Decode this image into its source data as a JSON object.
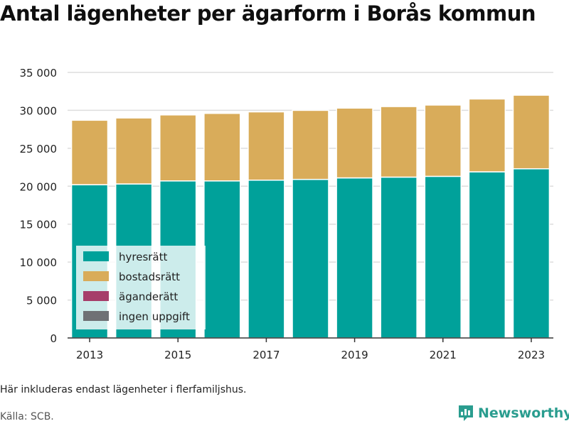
{
  "title": "Antal lägenheter per ägarform i Borås kommun",
  "note": "Här inkluderas endast lägenheter i flerfamiljshus.",
  "source": "Källa: SCB.",
  "brand": {
    "name": "Newsworthy",
    "color": "#2a9d8f"
  },
  "colors": {
    "hyresratt": "#00a19a",
    "bostadsratt": "#d9ac5a",
    "aganderatt": "#a63e6a",
    "ingen_uppgift": "#6f7175",
    "grid": "#dddddd",
    "axis": "#333333"
  },
  "chart_data": {
    "type": "bar",
    "stacked": true,
    "categories": [
      2013,
      2014,
      2015,
      2016,
      2017,
      2018,
      2019,
      2020,
      2021,
      2022,
      2023
    ],
    "x_tick_labels": [
      "2013",
      "2015",
      "2017",
      "2019",
      "2021",
      "2023"
    ],
    "y_tick_labels": [
      "0",
      "5 000",
      "10 000",
      "15 000",
      "20 000",
      "25 000",
      "30 000",
      "35 000"
    ],
    "ylim": [
      0,
      35000
    ],
    "grid": true,
    "legend_position": "bottom-left",
    "series": [
      {
        "name": "hyresrätt",
        "color": "#00a19a",
        "values": [
          20200,
          20300,
          20700,
          20700,
          20800,
          20900,
          21100,
          21200,
          21300,
          21900,
          22300
        ]
      },
      {
        "name": "bostadsrätt",
        "color": "#d9ac5a",
        "values": [
          8500,
          8700,
          8700,
          8900,
          9000,
          9100,
          9200,
          9300,
          9400,
          9600,
          9700
        ]
      },
      {
        "name": "äganderätt",
        "color": "#a63e6a",
        "values": [
          0,
          0,
          0,
          0,
          0,
          0,
          0,
          0,
          0,
          0,
          0
        ]
      },
      {
        "name": "ingen uppgift",
        "color": "#6f7175",
        "values": [
          0,
          0,
          0,
          0,
          0,
          0,
          0,
          0,
          0,
          0,
          0
        ]
      }
    ]
  }
}
